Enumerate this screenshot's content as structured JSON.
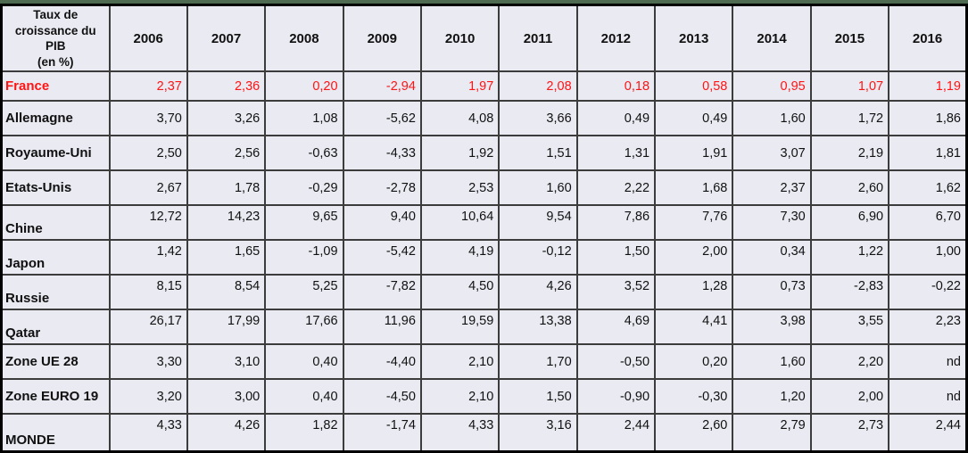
{
  "table": {
    "title_lines": [
      "Taux de",
      "croissance du PIB",
      "(en %)"
    ],
    "title_text": "Taux de croissance du PIB (en %)",
    "years": [
      "2006",
      "2007",
      "2008",
      "2009",
      "2010",
      "2011",
      "2012",
      "2013",
      "2014",
      "2015",
      "2016"
    ],
    "rows": [
      {
        "label": "France",
        "text_color": "#ff1414",
        "values": [
          "2,37",
          "2,36",
          "0,20",
          "-2,94",
          "1,97",
          "2,08",
          "0,18",
          "0,58",
          "0,95",
          "1,07",
          "1,19"
        ]
      },
      {
        "label": "Allemagne",
        "values": [
          "3,70",
          "3,26",
          "1,08",
          "-5,62",
          "4,08",
          "3,66",
          "0,49",
          "0,49",
          "1,60",
          "1,72",
          "1,86"
        ]
      },
      {
        "label": "Royaume-Uni",
        "values": [
          "2,50",
          "2,56",
          "-0,63",
          "-4,33",
          "1,92",
          "1,51",
          "1,31",
          "1,91",
          "3,07",
          "2,19",
          "1,81"
        ]
      },
      {
        "label": "Etats-Unis",
        "values": [
          "2,67",
          "1,78",
          "-0,29",
          "-2,78",
          "2,53",
          "1,60",
          "2,22",
          "1,68",
          "2,37",
          "2,60",
          "1,62"
        ]
      },
      {
        "label": "Chine",
        "values": [
          "12,72",
          "14,23",
          "9,65",
          "9,40",
          "10,64",
          "9,54",
          "7,86",
          "7,76",
          "7,30",
          "6,90",
          "6,70"
        ]
      },
      {
        "label": "Japon",
        "values": [
          "1,42",
          "1,65",
          "-1,09",
          "-5,42",
          "4,19",
          "-0,12",
          "1,50",
          "2,00",
          "0,34",
          "1,22",
          "1,00"
        ]
      },
      {
        "label": "Russie",
        "values": [
          "8,15",
          "8,54",
          "5,25",
          "-7,82",
          "4,50",
          "4,26",
          "3,52",
          "1,28",
          "0,73",
          "-2,83",
          "-0,22"
        ]
      },
      {
        "label": "Qatar",
        "values": [
          "26,17",
          "17,99",
          "17,66",
          "11,96",
          "19,59",
          "13,38",
          "4,69",
          "4,41",
          "3,98",
          "3,55",
          "2,23"
        ]
      },
      {
        "label": "Zone UE 28",
        "values": [
          "3,30",
          "3,10",
          "0,40",
          "-4,40",
          "2,10",
          "1,70",
          "-0,50",
          "0,20",
          "1,60",
          "2,20",
          "nd"
        ]
      },
      {
        "label": "Zone EURO 19",
        "values": [
          "3,20",
          "3,00",
          "0,40",
          "-4,50",
          "2,10",
          "1,50",
          "-0,90",
          "-0,30",
          "1,20",
          "2,00",
          "nd"
        ]
      },
      {
        "label": "MONDE",
        "values": [
          "4,33",
          "4,26",
          "1,82",
          "-1,74",
          "4,33",
          "3,16",
          "2,44",
          "2,60",
          "2,79",
          "2,73",
          "2,44"
        ]
      }
    ],
    "no_data_marker": "nd"
  },
  "colors": {
    "highlight_row_text": "#ff1414",
    "cell_background": "#e9eaf2",
    "grid_line": "#3c3c3c",
    "outer_border": "#000000",
    "page_background_green": "#465d49",
    "default_text": "#111111"
  }
}
